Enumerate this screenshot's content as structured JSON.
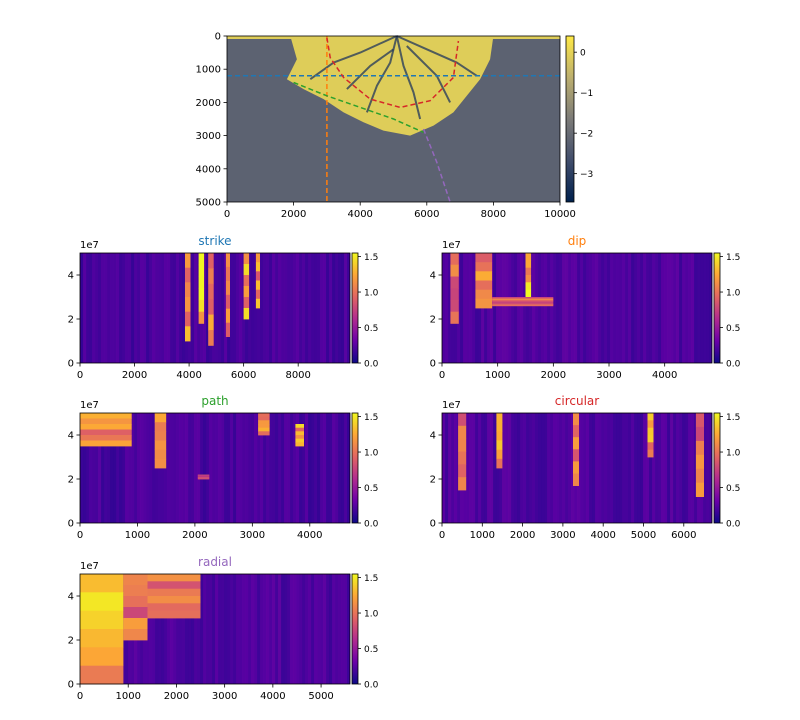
{
  "figure": {
    "colormaps": {
      "map": [
        "#00204d",
        "#414d6b",
        "#7c7b78",
        "#bcaf6f",
        "#ffe945"
      ],
      "panels": [
        "#0d0887",
        "#6a00a8",
        "#b12a90",
        "#e16462",
        "#fca636",
        "#f0f921"
      ]
    },
    "path_colors": {
      "strike": "#1f77b4",
      "dip": "#ff7f0e",
      "path": "#2ca02c",
      "circular": "#d62728",
      "radial": "#9467bd"
    }
  },
  "chart_data": [
    {
      "id": "map",
      "type": "heatmap",
      "title": "",
      "xlabel": "",
      "ylabel": "",
      "xlim": [
        0,
        10000
      ],
      "ylim": [
        5000,
        0
      ],
      "x_ticks": [
        "0",
        "2000",
        "4000",
        "6000",
        "8000",
        "10000"
      ],
      "x_tick_values": [
        0,
        2000,
        4000,
        6000,
        8000,
        10000
      ],
      "y_ticks": [
        "0",
        "1000",
        "2000",
        "3000",
        "4000",
        "5000"
      ],
      "y_tick_values": [
        0,
        1000,
        2000,
        3000,
        4000,
        5000
      ],
      "colorbar": {
        "range": [
          -3.7,
          0.4
        ],
        "ticks": [
          "0",
          "−1",
          "−2",
          "−3"
        ],
        "tick_values": [
          0,
          -1,
          -2,
          -3
        ]
      },
      "background_value": -2.2,
      "fan_value": -0.1,
      "channel_value": -3.2,
      "lines": [
        {
          "name": "strike",
          "style": "dashed",
          "points": [
            [
              0,
              1200
            ],
            [
              10000,
              1200
            ]
          ]
        },
        {
          "name": "dip",
          "style": "dashed",
          "points": [
            [
              3000,
              0
            ],
            [
              3000,
              5000
            ]
          ]
        },
        {
          "name": "path",
          "style": "dashed",
          "points": [
            [
              2000,
              1400
            ],
            [
              3000,
              1800
            ],
            [
              4000,
              2150
            ],
            [
              5000,
              2500
            ],
            [
              5900,
              2900
            ]
          ]
        },
        {
          "name": "circular",
          "style": "dashed",
          "points": [
            [
              3000,
              50
            ],
            [
              3100,
              650
            ],
            [
              3500,
              1250
            ],
            [
              4300,
              1900
            ],
            [
              5200,
              2150
            ],
            [
              6100,
              1950
            ],
            [
              6800,
              1250
            ],
            [
              6950,
              150
            ]
          ]
        },
        {
          "name": "radial",
          "style": "dashed",
          "points": [
            [
              5900,
              2800
            ],
            [
              6300,
              3800
            ],
            [
              6700,
              5000
            ]
          ]
        }
      ]
    },
    {
      "id": "strike",
      "type": "heatmap",
      "title": "strike",
      "xlim": [
        0,
        9900
      ],
      "ylim": [
        0,
        50000000
      ],
      "x_ticks": [
        "0",
        "2000",
        "4000",
        "6000",
        "8000"
      ],
      "x_tick_values": [
        0,
        2000,
        4000,
        6000,
        8000
      ],
      "y_ticks": [
        "0",
        "2",
        "4"
      ],
      "y_tick_values": [
        0,
        20000000,
        40000000
      ],
      "y_offset_label": "1e7",
      "colorbar": {
        "range": [
          0,
          1.55
        ],
        "ticks": [
          "0.0",
          "0.5",
          "1.0",
          "1.5"
        ],
        "tick_values": [
          0,
          0.5,
          1.0,
          1.5
        ]
      },
      "background_value": 0.18,
      "bright_bands": [
        {
          "x": [
            3850,
            4050
          ],
          "y": [
            10000000,
            50000000
          ],
          "value": 1.2
        },
        {
          "x": [
            4350,
            4550
          ],
          "y": [
            18000000,
            50000000
          ],
          "value": 1.4
        },
        {
          "x": [
            4700,
            4900
          ],
          "y": [
            8000000,
            50000000
          ],
          "value": 1.3
        },
        {
          "x": [
            5350,
            5500
          ],
          "y": [
            12000000,
            50000000
          ],
          "value": 1.1
        },
        {
          "x": [
            6000,
            6200
          ],
          "y": [
            20000000,
            50000000
          ],
          "value": 1.3
        },
        {
          "x": [
            6450,
            6600
          ],
          "y": [
            25000000,
            50000000
          ],
          "value": 1.2
        }
      ]
    },
    {
      "id": "dip",
      "type": "heatmap",
      "title": "dip",
      "xlim": [
        0,
        4850
      ],
      "ylim": [
        0,
        50000000
      ],
      "x_ticks": [
        "0",
        "1000",
        "2000",
        "3000",
        "4000"
      ],
      "x_tick_values": [
        0,
        1000,
        2000,
        3000,
        4000
      ],
      "y_ticks": [
        "0",
        "2",
        "4"
      ],
      "y_tick_values": [
        0,
        20000000,
        40000000
      ],
      "y_offset_label": "1e7",
      "colorbar": {
        "range": [
          0,
          1.55
        ],
        "ticks": [
          "0.0",
          "0.5",
          "1.0",
          "1.5"
        ],
        "tick_values": [
          0,
          0.5,
          1.0,
          1.5
        ]
      },
      "background_value": 0.2,
      "bright_bands": [
        {
          "x": [
            150,
            300
          ],
          "y": [
            18000000,
            50000000
          ],
          "value": 1.0
        },
        {
          "x": [
            600,
            900
          ],
          "y": [
            25000000,
            50000000
          ],
          "value": 1.1
        },
        {
          "x": [
            1500,
            1600
          ],
          "y": [
            30000000,
            50000000
          ],
          "value": 1.4
        },
        {
          "x": [
            900,
            2000
          ],
          "y": [
            26000000,
            30000000
          ],
          "value": 1.0
        }
      ]
    },
    {
      "id": "path",
      "type": "heatmap",
      "title": "path",
      "xlim": [
        0,
        4700
      ],
      "ylim": [
        0,
        50000000
      ],
      "x_ticks": [
        "0",
        "1000",
        "2000",
        "3000",
        "4000"
      ],
      "x_tick_values": [
        0,
        1000,
        2000,
        3000,
        4000
      ],
      "y_ticks": [
        "0",
        "2",
        "4"
      ],
      "y_tick_values": [
        0,
        20000000,
        40000000
      ],
      "y_offset_label": "1e7",
      "colorbar": {
        "range": [
          0,
          1.55
        ],
        "ticks": [
          "0.0",
          "0.5",
          "1.0",
          "1.5"
        ],
        "tick_values": [
          0,
          0.5,
          1.0,
          1.5
        ]
      },
      "background_value": 0.18,
      "bright_bands": [
        {
          "x": [
            0,
            900
          ],
          "y": [
            35000000,
            50000000
          ],
          "value": 1.2
        },
        {
          "x": [
            1300,
            1500
          ],
          "y": [
            25000000,
            50000000
          ],
          "value": 1.1
        },
        {
          "x": [
            2050,
            2250
          ],
          "y": [
            20000000,
            22000000
          ],
          "value": 0.9
        },
        {
          "x": [
            3100,
            3300
          ],
          "y": [
            40000000,
            50000000
          ],
          "value": 1.2
        },
        {
          "x": [
            3750,
            3900
          ],
          "y": [
            35000000,
            45000000
          ],
          "value": 1.3
        }
      ]
    },
    {
      "id": "circular",
      "type": "heatmap",
      "title": "circular",
      "xlim": [
        0,
        6700
      ],
      "ylim": [
        0,
        50000000
      ],
      "x_ticks": [
        "0",
        "1000",
        "2000",
        "3000",
        "4000",
        "5000",
        "6000"
      ],
      "x_tick_values": [
        0,
        1000,
        2000,
        3000,
        4000,
        5000,
        6000
      ],
      "y_ticks": [
        "0",
        "2",
        "4"
      ],
      "y_tick_values": [
        0,
        20000000,
        40000000
      ],
      "y_offset_label": "1e7",
      "colorbar": {
        "range": [
          0,
          1.55
        ],
        "ticks": [
          "0.0",
          "0.5",
          "1.0",
          "1.5"
        ],
        "tick_values": [
          0,
          0.5,
          1.0,
          1.5
        ]
      },
      "background_value": 0.2,
      "bright_bands": [
        {
          "x": [
            400,
            600
          ],
          "y": [
            15000000,
            50000000
          ],
          "value": 1.0
        },
        {
          "x": [
            1350,
            1500
          ],
          "y": [
            25000000,
            50000000
          ],
          "value": 1.2
        },
        {
          "x": [
            3250,
            3400
          ],
          "y": [
            17000000,
            50000000
          ],
          "value": 1.1
        },
        {
          "x": [
            5100,
            5250
          ],
          "y": [
            30000000,
            50000000
          ],
          "value": 1.3
        },
        {
          "x": [
            6300,
            6500
          ],
          "y": [
            12000000,
            50000000
          ],
          "value": 1.1
        }
      ]
    },
    {
      "id": "radial",
      "type": "heatmap",
      "title": "radial",
      "xlim": [
        0,
        5600
      ],
      "ylim": [
        0,
        50000000
      ],
      "x_ticks": [
        "0",
        "1000",
        "2000",
        "3000",
        "4000",
        "5000"
      ],
      "x_tick_values": [
        0,
        1000,
        2000,
        3000,
        4000,
        5000
      ],
      "y_ticks": [
        "0",
        "2",
        "4"
      ],
      "y_tick_values": [
        0,
        20000000,
        40000000
      ],
      "y_offset_label": "1e7",
      "colorbar": {
        "range": [
          0,
          1.55
        ],
        "ticks": [
          "0.0",
          "0.5",
          "1.0",
          "1.5"
        ],
        "tick_values": [
          0,
          0.5,
          1.0,
          1.5
        ]
      },
      "background_value": 0.2,
      "bright_bands": [
        {
          "x": [
            0,
            900
          ],
          "y": [
            0,
            50000000
          ],
          "value": 1.3
        },
        {
          "x": [
            900,
            1400
          ],
          "y": [
            20000000,
            50000000
          ],
          "value": 1.1
        },
        {
          "x": [
            1400,
            2500
          ],
          "y": [
            30000000,
            50000000
          ],
          "value": 1.0
        }
      ]
    }
  ]
}
